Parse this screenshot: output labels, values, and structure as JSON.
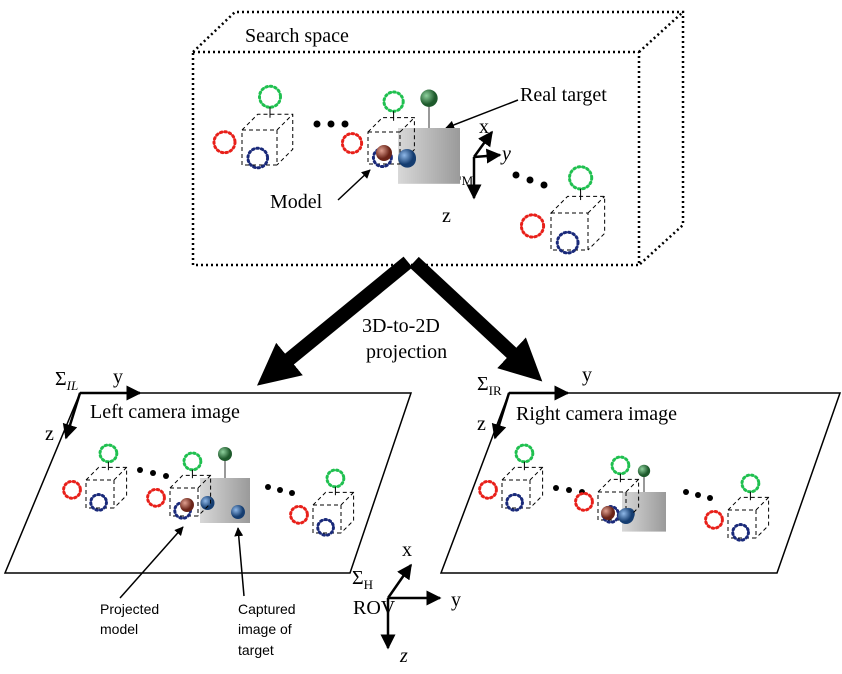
{
  "search_space": {
    "label": "Search space",
    "real_target": "Real target",
    "model": "Model",
    "frame": {
      "symbol": "Σ",
      "sub": "M",
      "x": "x",
      "y": "y",
      "z": "z"
    }
  },
  "projection": {
    "lines": [
      "3D-to-2D",
      "projection"
    ]
  },
  "left_image": {
    "label": "Left camera image",
    "frame": {
      "symbol": "Σ",
      "sub": "IL",
      "y": "y",
      "z": "z"
    },
    "projected_model": [
      "Projected",
      "model"
    ],
    "captured_image": [
      "Captured",
      "image of",
      "target"
    ]
  },
  "right_image": {
    "label": "Right camera image",
    "frame": {
      "symbol": "Σ",
      "sub": "IR",
      "y": "y",
      "z": "z"
    }
  },
  "rov_frame": {
    "symbol": "Σ",
    "sub": "H",
    "name": "ROV",
    "x": "x",
    "y": "y",
    "z": "z"
  }
}
